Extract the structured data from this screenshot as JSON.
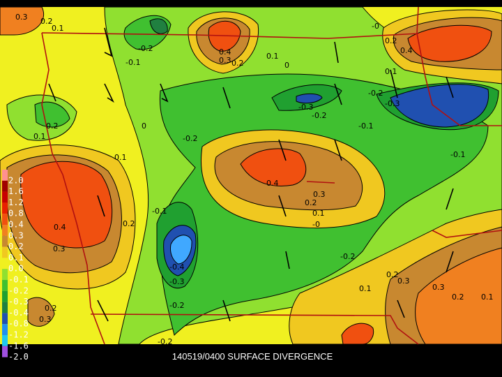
{
  "title": "140519/0400 SURFACE DIVERGENCE",
  "legend": [
    {
      "label": "2.0",
      "color": "#ff9090"
    },
    {
      "label": "1.6",
      "color": "#a00000"
    },
    {
      "label": "1.2",
      "color": "#c80000"
    },
    {
      "label": "0.8",
      "color": "#e82000"
    },
    {
      "label": "0.4",
      "color": "#f05010"
    },
    {
      "label": "0.3",
      "color": "#f08020"
    },
    {
      "label": "0.2",
      "color": "#c88830"
    },
    {
      "label": "0.1",
      "color": "#f0c820"
    },
    {
      "label": "0.0",
      "color": "#f0f020"
    },
    {
      "label": "-0.1",
      "color": "#90e030"
    },
    {
      "label": "-0.2",
      "color": "#40c030"
    },
    {
      "label": "-0.3",
      "color": "#20a030"
    },
    {
      "label": "-0.4",
      "color": "#208040"
    },
    {
      "label": "-0.8",
      "color": "#2050b0"
    },
    {
      "label": "-1.2",
      "color": "#2090f0"
    },
    {
      "label": "-1.6",
      "color": "#20c8f0"
    },
    {
      "label": "-2.0",
      "color": "#a050e0"
    }
  ],
  "contour_labels": [
    "0.3",
    "0.2",
    "0.1",
    "-0.2",
    "-0.1",
    "0.4",
    "0.3",
    "0.2",
    "0.1",
    "0",
    "-0",
    "0.2",
    "0.4",
    "0.1",
    "-0.2",
    "-0.3",
    "-0.3",
    "-0.2",
    "-0.1",
    "0.2",
    "0.1",
    "0",
    "-0.2",
    "0.1",
    "-0.1",
    "0.4",
    "0.3",
    "0.2",
    "0.1",
    "-0",
    "0.4",
    "0.3",
    "0.2",
    "-0.1",
    "-0.4",
    "-0.3",
    "-0.2",
    "-0.2",
    "0.2",
    "0.3",
    "0.3",
    "0.1",
    "0.2",
    "0.1",
    "0.2",
    "0.3",
    "-0.2"
  ]
}
